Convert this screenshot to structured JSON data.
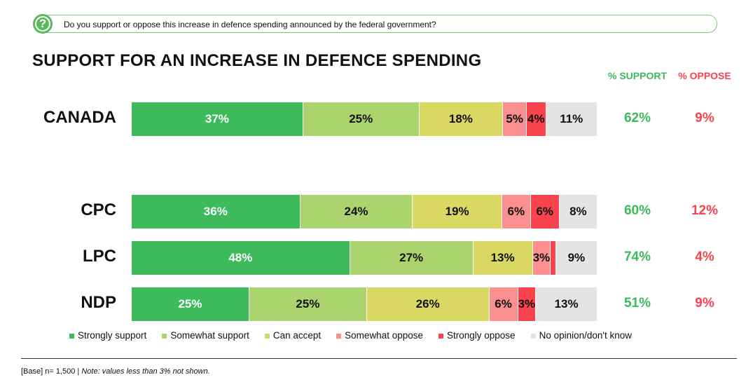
{
  "question": "Do you support or oppose this increase in defence spending announced by the federal government?",
  "chart_data": {
    "type": "bar",
    "orientation": "horizontal-stacked-100",
    "title": "SUPPORT FOR AN INCREASE IN DEFENCE SPENDING",
    "categories": [
      "CANADA",
      "CPC",
      "LPC",
      "NDP"
    ],
    "series": [
      {
        "name": "Strongly support",
        "color": "#3dba5c",
        "values": [
          37,
          36,
          48,
          25
        ]
      },
      {
        "name": "Somewhat support",
        "color": "#acd46e",
        "values": [
          25,
          24,
          27,
          25
        ]
      },
      {
        "name": "Can accept",
        "color": "#d9d862",
        "values": [
          18,
          19,
          13,
          26
        ]
      },
      {
        "name": "Somewhat oppose",
        "color": "#fb8e8e",
        "values": [
          5,
          6,
          3,
          6
        ]
      },
      {
        "name": "Strongly oppose",
        "color": "#f9444f",
        "values": [
          4,
          6,
          1,
          3
        ]
      },
      {
        "name": "No opinion/don't know",
        "color": "#e4e4e4",
        "values": [
          11,
          8,
          9,
          13
        ]
      }
    ],
    "support_header": "% SUPPORT",
    "oppose_header": "% OPPOSE",
    "support": [
      "62%",
      "60%",
      "74%",
      "51%"
    ],
    "oppose": [
      "9%",
      "12%",
      "4%",
      "9%"
    ],
    "legend": "bottom"
  },
  "footnote_base": "[Base] n= 1,500 | ",
  "footnote_note": "Note: values less than 3% not shown."
}
